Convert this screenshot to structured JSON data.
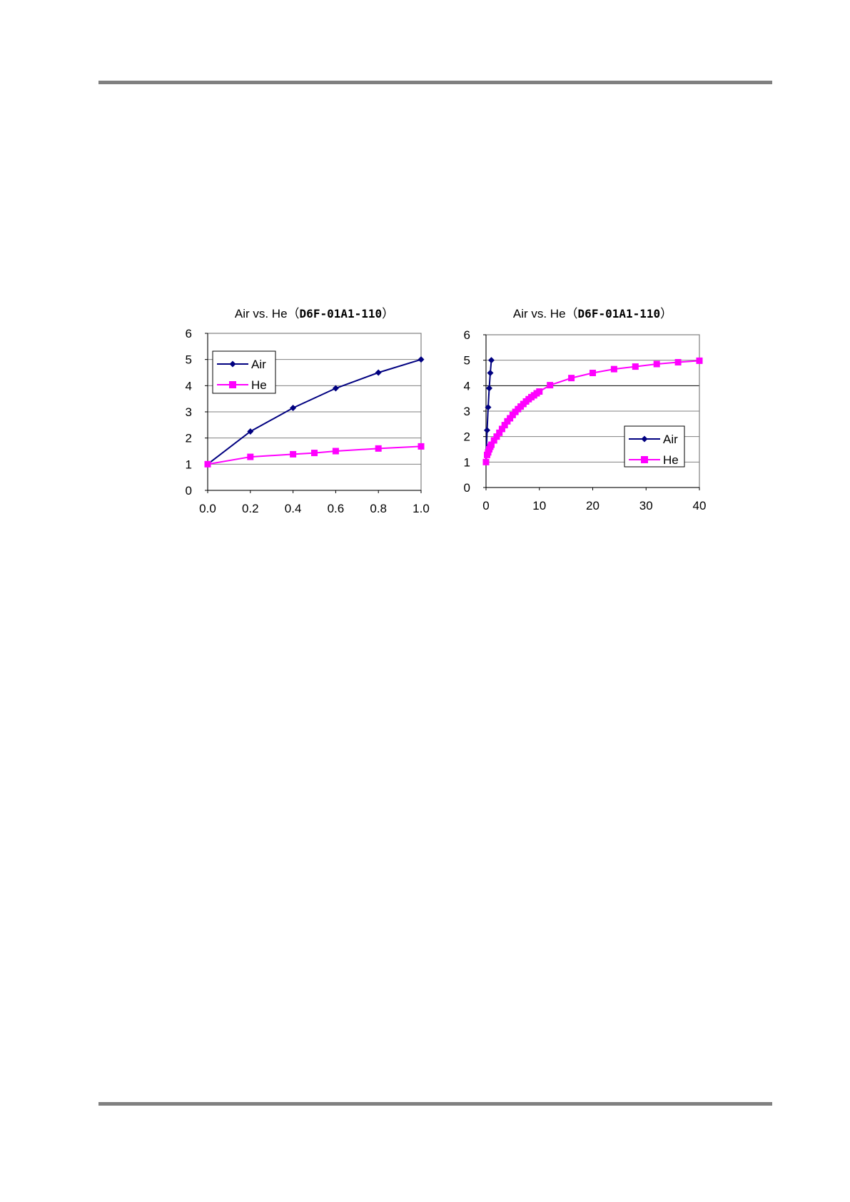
{
  "chart_data": [
    {
      "type": "line",
      "title_prefix": "Air vs. He（",
      "title_model": "D6F-01A1-110",
      "title_suffix": "）",
      "xlabel": "",
      "ylabel": "",
      "xlim": [
        0.0,
        1.0
      ],
      "ylim": [
        0,
        6
      ],
      "xticks": [
        "0.0",
        "0.2",
        "0.4",
        "0.6",
        "0.8",
        "1.0"
      ],
      "yticks": [
        "0",
        "1",
        "2",
        "3",
        "4",
        "5",
        "6"
      ],
      "grid": true,
      "legend_position": "top-left",
      "series": [
        {
          "name": "Air",
          "color": "#000080",
          "marker": "diamond",
          "x": [
            0.0,
            0.2,
            0.4,
            0.6,
            0.8,
            1.0
          ],
          "y": [
            1.0,
            2.25,
            3.15,
            3.9,
            4.5,
            5.0
          ]
        },
        {
          "name": "He",
          "color": "#ff00ff",
          "marker": "square",
          "x": [
            0.0,
            0.2,
            0.4,
            0.5,
            0.6,
            0.8,
            1.0
          ],
          "y": [
            1.0,
            1.28,
            1.38,
            1.43,
            1.5,
            1.6,
            1.68
          ]
        }
      ]
    },
    {
      "type": "line",
      "title_prefix": "Air vs. He（",
      "title_model": "D6F-01A1-110",
      "title_suffix": "）",
      "xlabel": "",
      "ylabel": "",
      "xlim": [
        0,
        40
      ],
      "ylim": [
        0,
        6
      ],
      "xticks": [
        "0",
        "10",
        "20",
        "30",
        "40"
      ],
      "yticks": [
        "0",
        "1",
        "2",
        "3",
        "4",
        "5",
        "6"
      ],
      "grid": true,
      "legend_position": "bottom-right",
      "series": [
        {
          "name": "Air",
          "color": "#000080",
          "marker": "diamond",
          "x": [
            0.0,
            0.2,
            0.4,
            0.6,
            0.8,
            1.0
          ],
          "y": [
            1.0,
            2.25,
            3.15,
            3.9,
            4.5,
            5.0
          ]
        },
        {
          "name": "He",
          "color": "#ff00ff",
          "marker": "square",
          "x": [
            0.0,
            0.2,
            0.4,
            0.6,
            0.8,
            1.0,
            1.5,
            2.0,
            2.5,
            3.0,
            3.5,
            4.0,
            4.5,
            5.0,
            5.5,
            6.0,
            6.5,
            7.0,
            7.5,
            8.0,
            8.5,
            9.0,
            9.5,
            10.0,
            12.0,
            16.0,
            20.0,
            24.0,
            28.0,
            32.0,
            36.0,
            40.0
          ],
          "y": [
            1.0,
            1.28,
            1.38,
            1.5,
            1.6,
            1.68,
            1.85,
            2.0,
            2.15,
            2.3,
            2.45,
            2.6,
            2.72,
            2.85,
            2.97,
            3.08,
            3.18,
            3.28,
            3.38,
            3.47,
            3.55,
            3.62,
            3.7,
            3.77,
            4.02,
            4.3,
            4.5,
            4.65,
            4.75,
            4.85,
            4.92,
            4.98
          ]
        }
      ]
    }
  ]
}
